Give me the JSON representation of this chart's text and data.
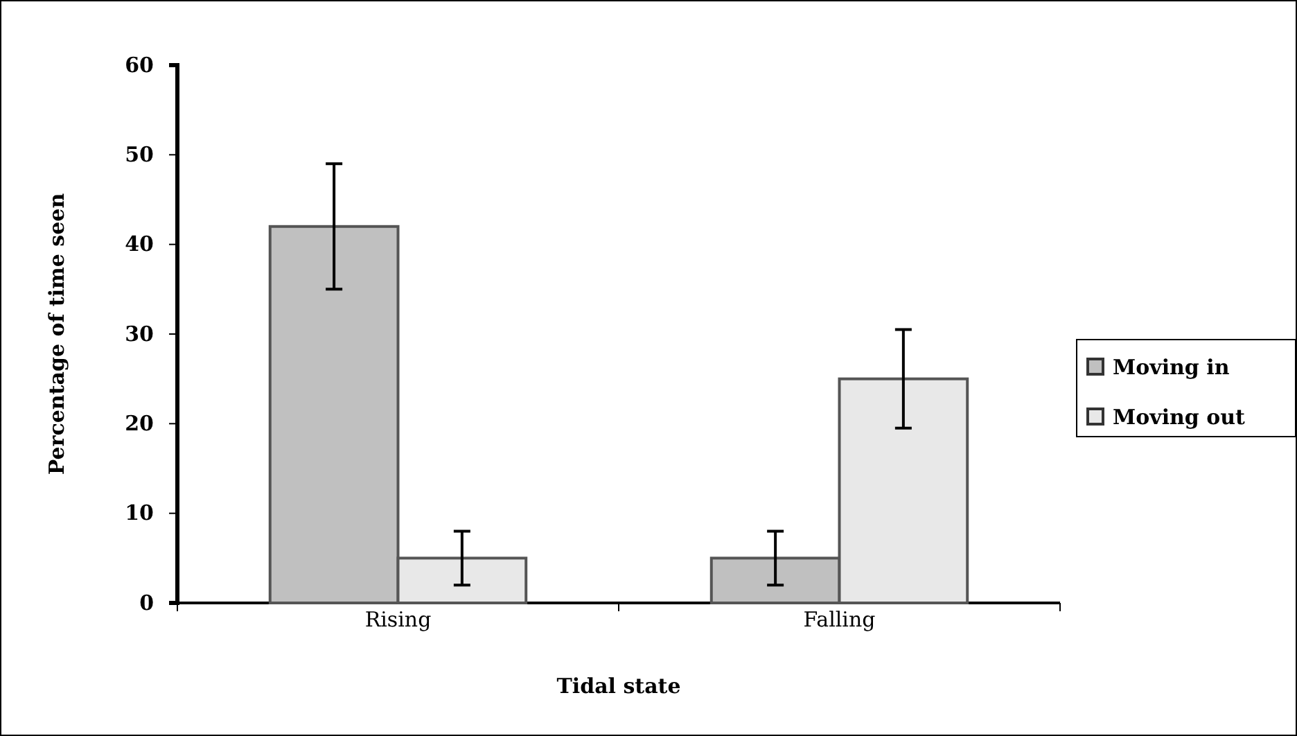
{
  "chart_data": {
    "type": "bar",
    "xlabel": "Tidal state",
    "ylabel": "Percentage of time seen",
    "categories": [
      "Rising",
      "Falling"
    ],
    "series": [
      {
        "name": "Moving in",
        "color": "#c0c0c0",
        "values": [
          42,
          5
        ],
        "errors": [
          7,
          3
        ]
      },
      {
        "name": "Moving out",
        "color": "#e8e8e8",
        "values": [
          5,
          25
        ],
        "errors": [
          3,
          [
            19.5,
            30.5
          ]
        ]
      }
    ],
    "ylim": [
      0,
      60
    ],
    "yticks": [
      0,
      10,
      20,
      30,
      40,
      50,
      60
    ],
    "grid": false,
    "legend": "right"
  }
}
